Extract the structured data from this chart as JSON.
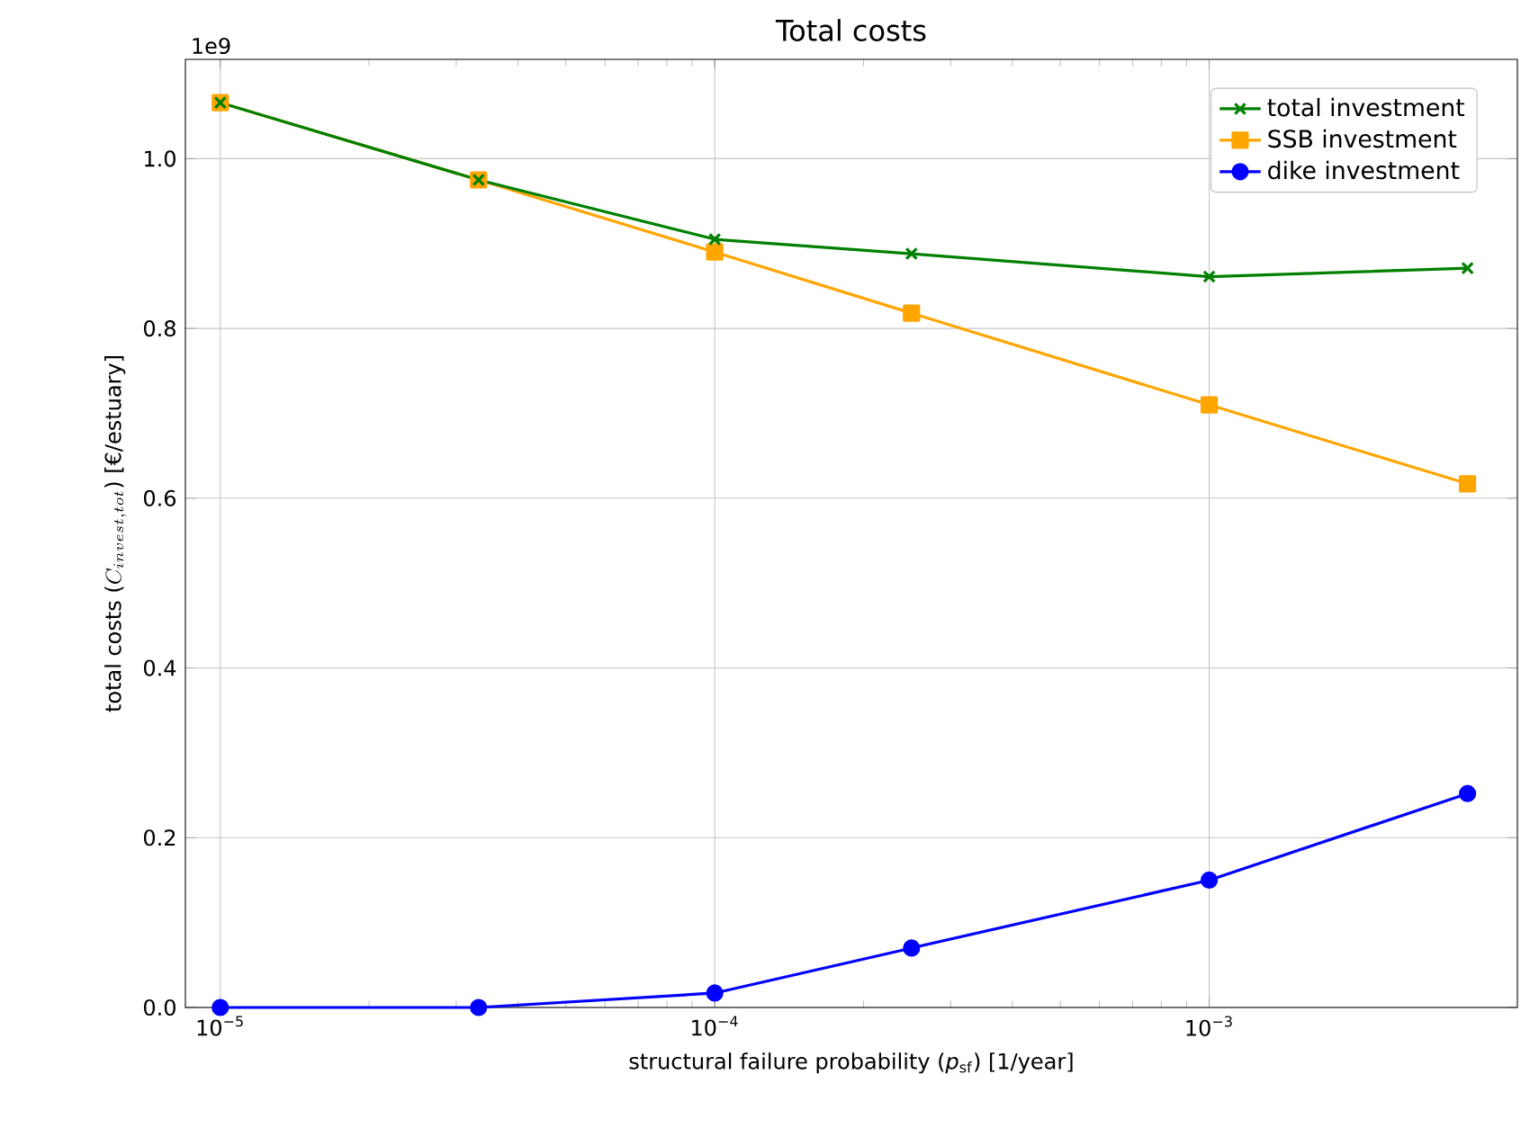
{
  "chart_data": {
    "type": "line",
    "title": "Total costs",
    "xlabel": "structural failure probability (*p*$_{sf}$) [1/year]",
    "ylabel": "\\mbox{total costs (}C_{invest,tot}\\mbox{) [€/estuary]}",
    "annotations": [
      "1e9"
    ],
    "x": [
      1e-05,
      3.33e-05,
      0.0001,
      0.00025,
      0.001,
      0.00333
    ],
    "series": [
      {
        "name": "total investment",
        "color": "#008000",
        "marker": "cross",
        "values": [
          1.066,
          0.975,
          0.905,
          0.888,
          0.861,
          0.871
        ]
      },
      {
        "name": "SSB investment",
        "color": "#ffa500",
        "marker": "square",
        "values": [
          1.066,
          0.975,
          0.89,
          0.818,
          0.71,
          0.617
        ]
      },
      {
        "name": "dike investment",
        "color": "#0000ff",
        "marker": "circle",
        "values": [
          0.0,
          0.0,
          0.017,
          0.07,
          0.15,
          0.252
        ]
      }
    ],
    "log": "x",
    "xlim": [
      8.5e-06,
      0.0042
    ],
    "ylim": [
      0,
      1.117
    ],
    "xticks": [
      {
        "value": 1e-05,
        "label": "10$^{−5}$"
      },
      {
        "value": 0.0001,
        "label": "10$^{−4}$"
      },
      {
        "value": 0.001,
        "label": "10$^{−3}$"
      }
    ],
    "yticks": [
      {
        "value": 0,
        "label": "0.0"
      },
      {
        "value": 0.2,
        "label": "0.2"
      },
      {
        "value": 0.4,
        "label": "0.4"
      },
      {
        "value": 0.6,
        "label": "0.6"
      },
      {
        "value": 0.8,
        "label": "0.8"
      },
      {
        "value": 1.0,
        "label": "1.0"
      }
    ],
    "grid": true,
    "legend": "top right",
    "line_style": "solid"
  }
}
